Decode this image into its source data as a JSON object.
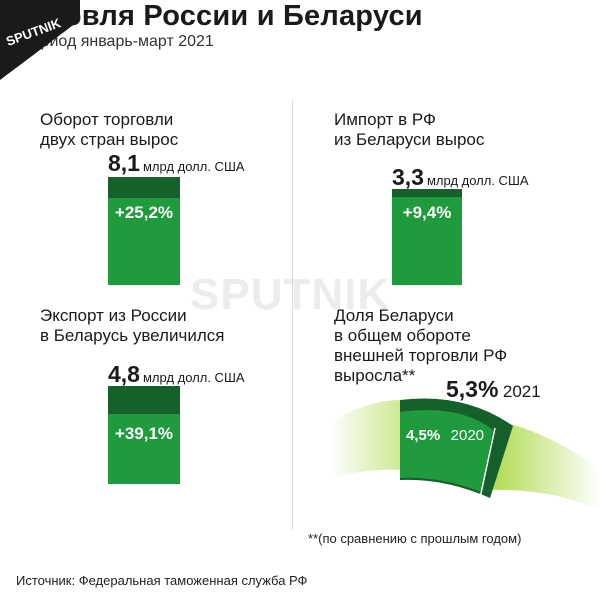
{
  "brand": {
    "logo_text": "SPUTNIK",
    "watermark": "SPUTNIK"
  },
  "title": "Торговля России и Беларуси",
  "subtitle": "За период январь-март 2021",
  "panels": {
    "turnover": {
      "heading_lines": [
        "Оборот торговли",
        "двух стран вырос"
      ],
      "value": "8,1",
      "unit": "млрд долл. США",
      "growth": "+25,2%"
    },
    "import": {
      "heading_lines": [
        "Импорт в РФ",
        "из Беларуси вырос"
      ],
      "value": "3,3",
      "unit": "млрд долл. США",
      "growth": "+9,4%"
    },
    "export": {
      "heading_lines": [
        "Экспорт из России",
        "в Беларусь увеличился"
      ],
      "value": "4,8",
      "unit": "млрд долл. США",
      "growth": "+39,1%"
    },
    "share": {
      "heading_lines": [
        "Доля Беларуси",
        "в общем обороте",
        "внешней торговли РФ",
        "выросла**"
      ],
      "value_2021": "5,3%",
      "year_2021": "2021",
      "value_2020": "4,5%",
      "year_2020": "2020"
    }
  },
  "footnote": "**(по сравнению с прошлым годом)",
  "source": "Источник: Федеральная таможенная служба РФ",
  "colors": {
    "bar": "#1f9a3c",
    "bar_head": "#15602b",
    "accent_light": "#a6d63a"
  },
  "chart_data": [
    {
      "type": "bar",
      "categories": [
        "Оборот торговли"
      ],
      "values": [
        8.1
      ],
      "unit": "млрд долл. США",
      "change_pct": 25.2
    },
    {
      "type": "bar",
      "categories": [
        "Импорт в РФ из Беларуси"
      ],
      "values": [
        3.3
      ],
      "unit": "млрд долл. США",
      "change_pct": 9.4
    },
    {
      "type": "bar",
      "categories": [
        "Экспорт из России в Беларусь"
      ],
      "values": [
        4.8
      ],
      "unit": "млрд долл. США",
      "change_pct": 39.1
    },
    {
      "type": "area",
      "categories": [
        "2020",
        "2021"
      ],
      "values": [
        4.5,
        5.3
      ],
      "unit": "%"
    }
  ]
}
